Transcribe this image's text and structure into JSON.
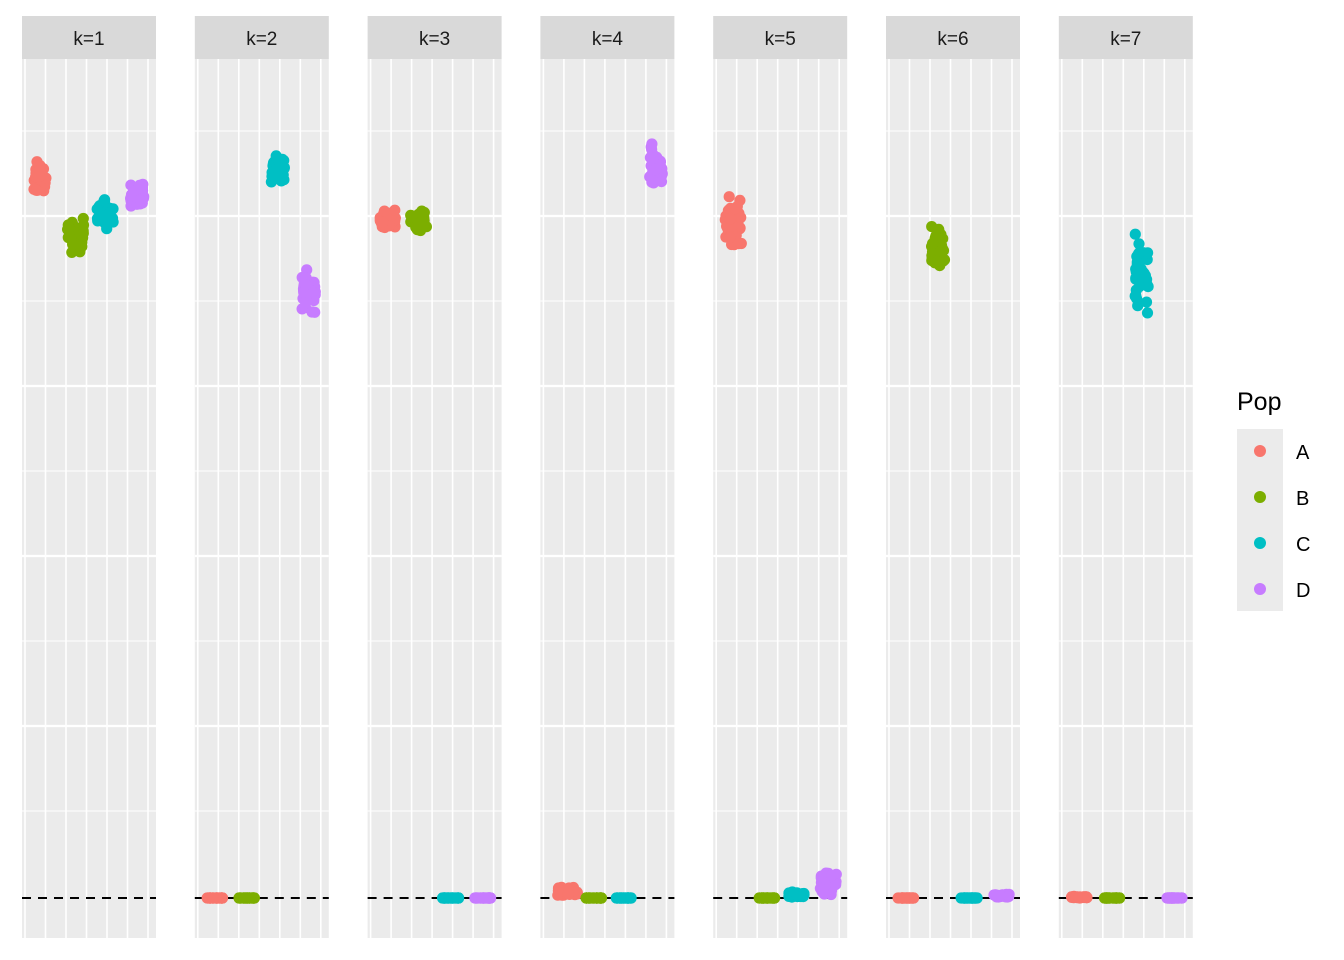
{
  "chart_data": {
    "type": "scatter",
    "title": "",
    "xlabel": "",
    "ylabel": "",
    "facets": [
      "k=1",
      "k=2",
      "k=3",
      "k=4",
      "k=5",
      "k=6",
      "k=7"
    ],
    "ylim": [
      0,
      1
    ],
    "reference_line": {
      "y": 0,
      "style": "dashed",
      "color": "#000000"
    },
    "legend": {
      "title": "Pop",
      "position": "right",
      "entries": [
        {
          "label": "A",
          "color": "#F8766D"
        },
        {
          "label": "B",
          "color": "#7CAE00"
        },
        {
          "label": "C",
          "color": "#00BFC4"
        },
        {
          "label": "D",
          "color": "#C77CFF"
        }
      ]
    },
    "grid": true,
    "series": [
      {
        "facet": "k=1",
        "pop": "A",
        "x_center": 0.13,
        "x_spread": 0.1,
        "y_center": 0.885,
        "y_spread": 0.018
      },
      {
        "facet": "k=1",
        "pop": "B",
        "x_center": 0.4,
        "x_spread": 0.12,
        "y_center": 0.815,
        "y_spread": 0.018
      },
      {
        "facet": "k=1",
        "pop": "C",
        "x_center": 0.62,
        "x_spread": 0.12,
        "y_center": 0.84,
        "y_spread": 0.016
      },
      {
        "facet": "k=1",
        "pop": "D",
        "x_center": 0.86,
        "x_spread": 0.1,
        "y_center": 0.866,
        "y_spread": 0.014
      },
      {
        "facet": "k=2",
        "pop": "A",
        "x_center": 0.15,
        "x_spread": 0.12,
        "y_center": 0.0,
        "y_spread": 0.0
      },
      {
        "facet": "k=2",
        "pop": "B",
        "x_center": 0.39,
        "x_spread": 0.12,
        "y_center": 0.0,
        "y_spread": 0.0
      },
      {
        "facet": "k=2",
        "pop": "C",
        "x_center": 0.62,
        "x_spread": 0.1,
        "y_center": 0.896,
        "y_spread": 0.02
      },
      {
        "facet": "k=2",
        "pop": "D",
        "x_center": 0.85,
        "x_spread": 0.1,
        "y_center": 0.746,
        "y_spread": 0.02
      },
      {
        "facet": "k=3",
        "pop": "A",
        "x_center": 0.15,
        "x_spread": 0.12,
        "y_center": 0.835,
        "y_spread": 0.012
      },
      {
        "facet": "k=3",
        "pop": "B",
        "x_center": 0.38,
        "x_spread": 0.12,
        "y_center": 0.834,
        "y_spread": 0.012
      },
      {
        "facet": "k=3",
        "pop": "C",
        "x_center": 0.62,
        "x_spread": 0.12,
        "y_center": 0.0,
        "y_spread": 0.0
      },
      {
        "facet": "k=3",
        "pop": "D",
        "x_center": 0.86,
        "x_spread": 0.12,
        "y_center": 0.0,
        "y_spread": 0.0
      },
      {
        "facet": "k=4",
        "pop": "A",
        "x_center": 0.2,
        "x_spread": 0.16,
        "y_center": 0.007,
        "y_spread": 0.005
      },
      {
        "facet": "k=4",
        "pop": "B",
        "x_center": 0.4,
        "x_spread": 0.12,
        "y_center": 0.0,
        "y_spread": 0.0
      },
      {
        "facet": "k=4",
        "pop": "C",
        "x_center": 0.62,
        "x_spread": 0.12,
        "y_center": 0.0,
        "y_spread": 0.0
      },
      {
        "facet": "k=4",
        "pop": "D",
        "x_center": 0.86,
        "x_spread": 0.1,
        "y_center": 0.903,
        "y_spread": 0.025
      },
      {
        "facet": "k=5",
        "pop": "A",
        "x_center": 0.15,
        "x_spread": 0.12,
        "y_center": 0.827,
        "y_spread": 0.032
      },
      {
        "facet": "k=5",
        "pop": "B",
        "x_center": 0.4,
        "x_spread": 0.12,
        "y_center": 0.0,
        "y_spread": 0.0
      },
      {
        "facet": "k=5",
        "pop": "C",
        "x_center": 0.62,
        "x_spread": 0.12,
        "y_center": 0.004,
        "y_spread": 0.003
      },
      {
        "facet": "k=5",
        "pop": "D",
        "x_center": 0.86,
        "x_spread": 0.12,
        "y_center": 0.018,
        "y_spread": 0.014
      },
      {
        "facet": "k=6",
        "pop": "A",
        "x_center": 0.15,
        "x_spread": 0.12,
        "y_center": 0.0,
        "y_spread": 0.0
      },
      {
        "facet": "k=6",
        "pop": "B",
        "x_center": 0.39,
        "x_spread": 0.1,
        "y_center": 0.803,
        "y_spread": 0.025
      },
      {
        "facet": "k=6",
        "pop": "C",
        "x_center": 0.62,
        "x_spread": 0.12,
        "y_center": 0.0,
        "y_spread": 0.0
      },
      {
        "facet": "k=6",
        "pop": "D",
        "x_center": 0.86,
        "x_spread": 0.12,
        "y_center": 0.003,
        "y_spread": 0.002
      },
      {
        "facet": "k=7",
        "pop": "A",
        "x_center": 0.15,
        "x_spread": 0.12,
        "y_center": 0.001,
        "y_spread": 0.001
      },
      {
        "facet": "k=7",
        "pop": "B",
        "x_center": 0.4,
        "x_spread": 0.12,
        "y_center": 0.0,
        "y_spread": 0.0
      },
      {
        "facet": "k=7",
        "pop": "C",
        "x_center": 0.62,
        "x_spread": 0.1,
        "y_center": 0.765,
        "y_spread": 0.045
      },
      {
        "facet": "k=7",
        "pop": "D",
        "x_center": 0.86,
        "x_spread": 0.12,
        "y_center": 0.0,
        "y_spread": 0.0
      }
    ]
  }
}
